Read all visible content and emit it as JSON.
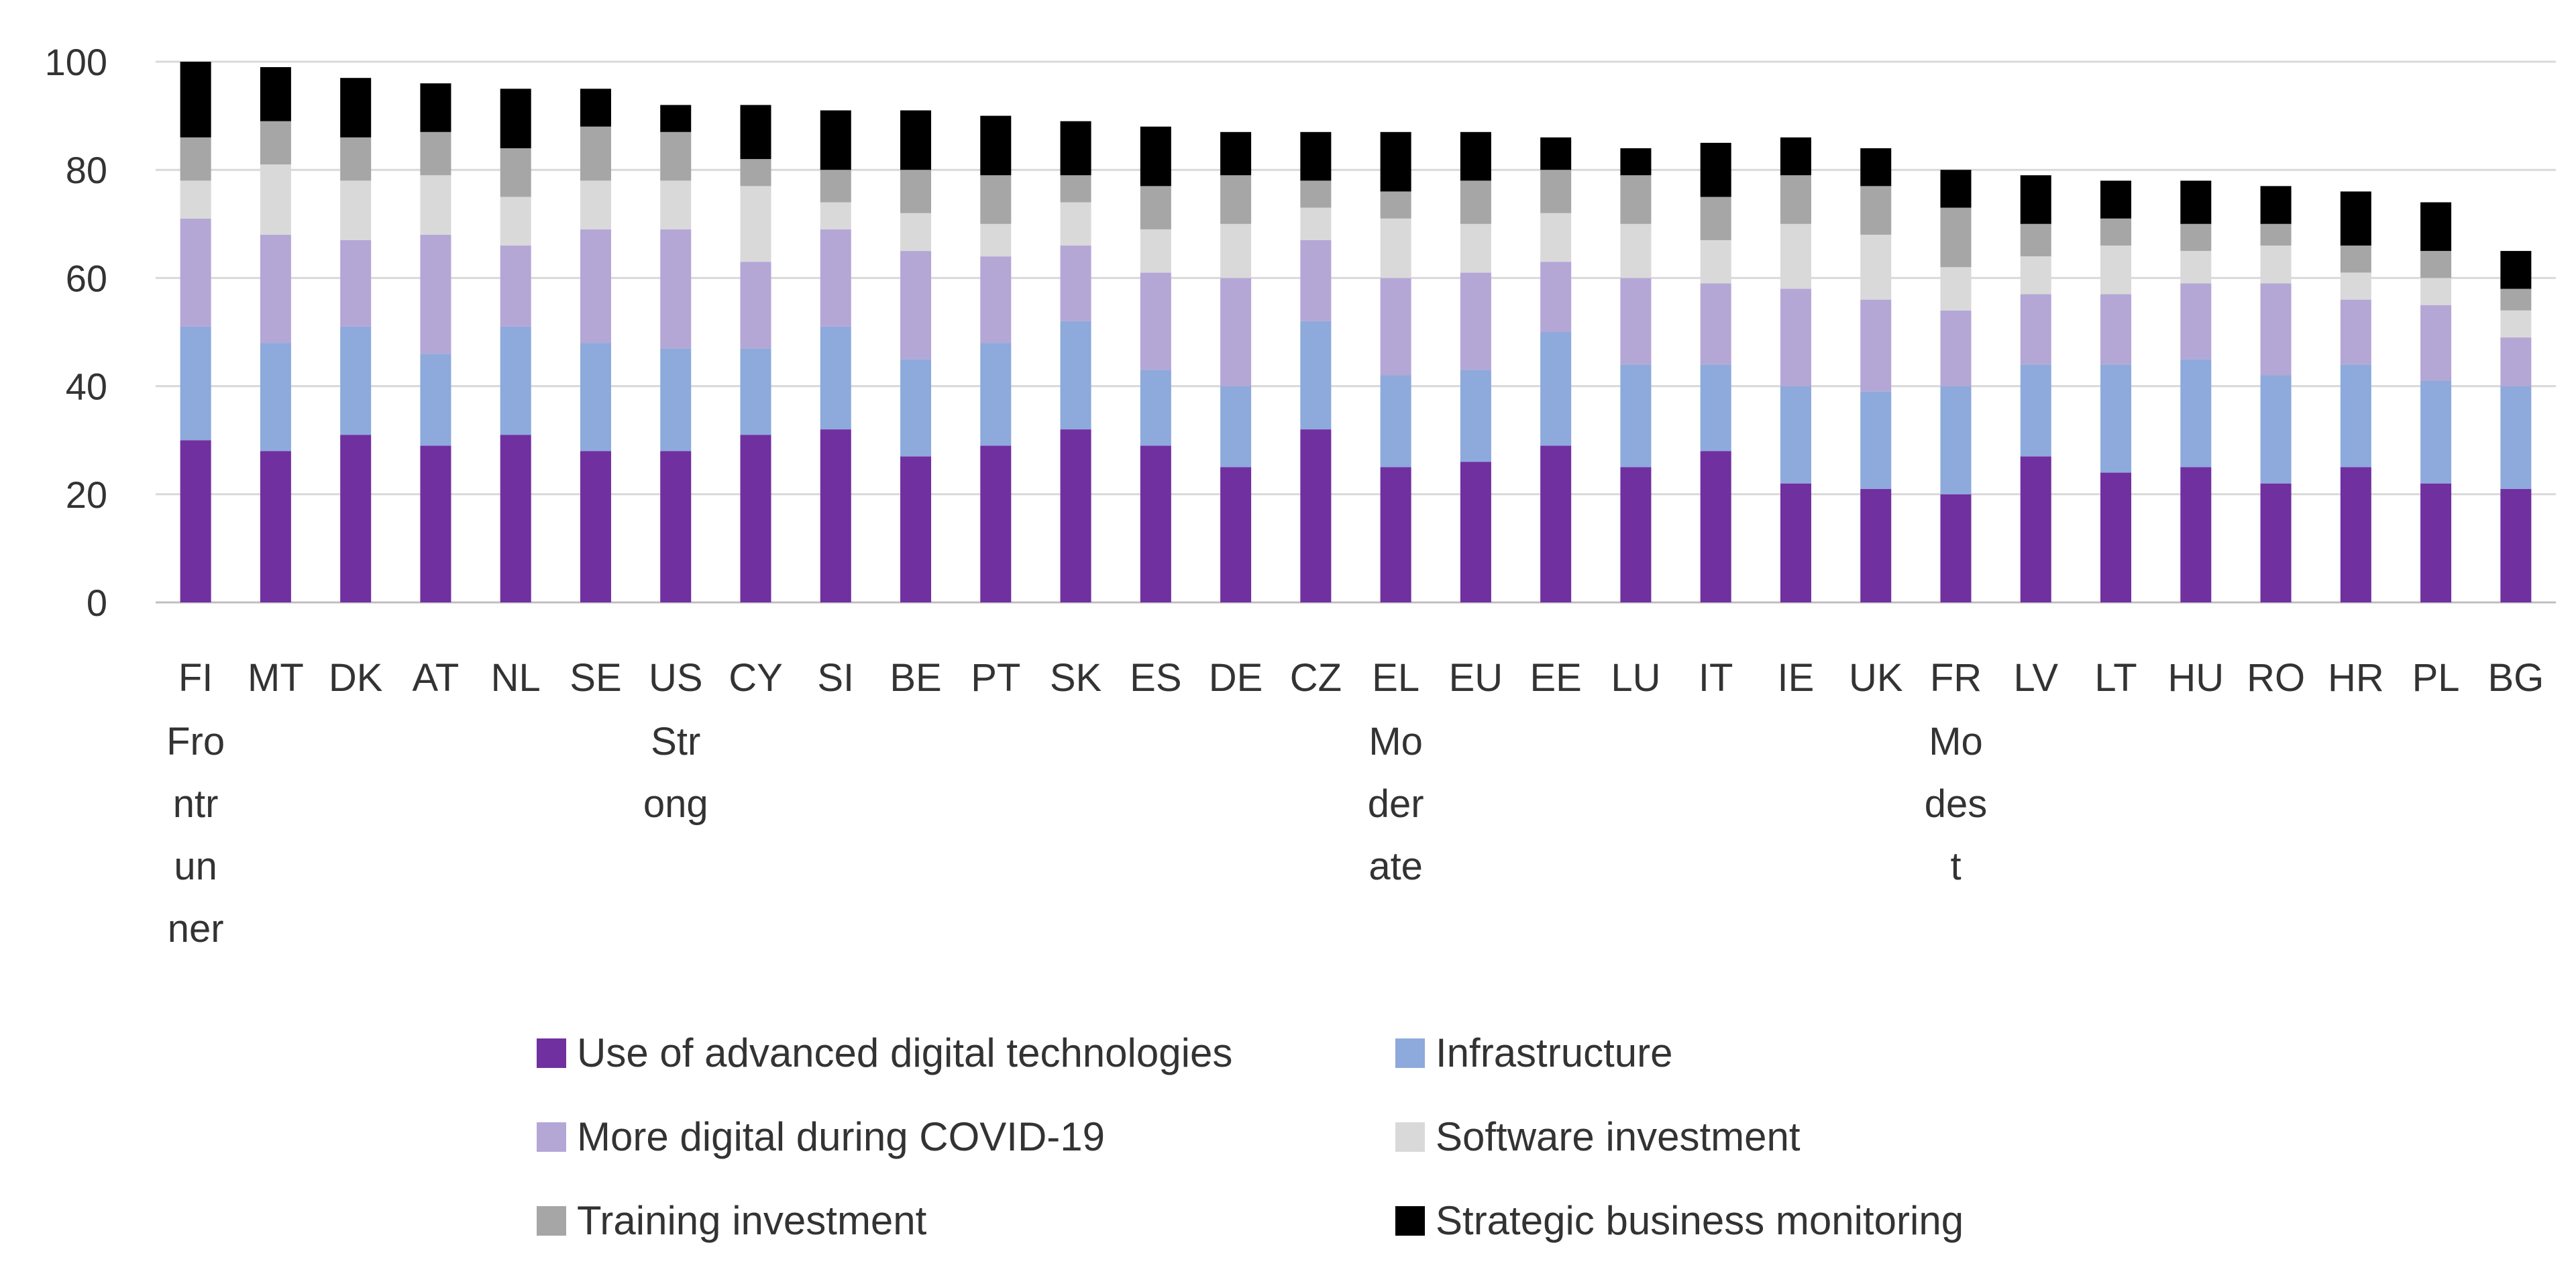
{
  "chart_data": {
    "type": "bar",
    "stacked": true,
    "title": "",
    "xlabel": "",
    "ylabel": "",
    "ylim": [
      0,
      100
    ],
    "yticks": [
      0,
      20,
      40,
      60,
      80,
      100
    ],
    "grid": true,
    "legend_position": "bottom",
    "categories": [
      "FI",
      "MT",
      "DK",
      "AT",
      "NL",
      "SE",
      "US",
      "CY",
      "SI",
      "BE",
      "PT",
      "SK",
      "ES",
      "DE",
      "CZ",
      "EL",
      "EU",
      "EE",
      "LU",
      "IT",
      "IE",
      "UK",
      "FR",
      "LV",
      "LT",
      "HU",
      "RO",
      "HR",
      "PL",
      "BG"
    ],
    "group_labels": [
      {
        "category": "FI",
        "lines": [
          "Fro",
          "ntr",
          "un",
          "ner"
        ]
      },
      {
        "category": "US",
        "lines": [
          "Str",
          "ong"
        ]
      },
      {
        "category": "EL",
        "lines": [
          "Mo",
          "der",
          "ate"
        ]
      },
      {
        "category": "FR",
        "lines": [
          "Mo",
          "des",
          "t"
        ]
      }
    ],
    "series": [
      {
        "name": "Use of advanced digital technologies",
        "color": "#7030A0",
        "values": [
          30,
          28,
          31,
          29,
          31,
          28,
          28,
          31,
          32,
          27,
          29,
          32,
          29,
          25,
          32,
          25,
          26,
          29,
          25,
          28,
          22,
          21,
          20,
          27,
          24,
          25,
          22,
          25,
          22,
          21
        ]
      },
      {
        "name": "Infrastructure",
        "color": "#8EA9DB",
        "values": [
          21,
          20,
          20,
          17,
          20,
          20,
          19,
          16,
          19,
          18,
          19,
          20,
          14,
          15,
          20,
          17,
          17,
          21,
          19,
          16,
          18,
          18,
          20,
          17,
          20,
          20,
          20,
          19,
          19,
          19
        ]
      },
      {
        "name": "More digital during COVID-19",
        "color": "#B4A7D6",
        "values": [
          20,
          20,
          16,
          22,
          15,
          21,
          22,
          16,
          18,
          20,
          16,
          14,
          18,
          20,
          15,
          18,
          18,
          13,
          16,
          15,
          18,
          17,
          14,
          13,
          13,
          14,
          17,
          12,
          14,
          9
        ]
      },
      {
        "name": "Software investment",
        "color": "#D9D9D9",
        "values": [
          7,
          13,
          11,
          11,
          9,
          9,
          9,
          14,
          5,
          7,
          6,
          8,
          8,
          10,
          6,
          11,
          9,
          9,
          10,
          8,
          12,
          12,
          8,
          7,
          9,
          6,
          7,
          5,
          5,
          5
        ]
      },
      {
        "name": "Training investment",
        "color": "#A6A6A6",
        "values": [
          8,
          8,
          8,
          8,
          9,
          10,
          9,
          5,
          6,
          8,
          9,
          5,
          8,
          9,
          5,
          5,
          8,
          8,
          9,
          8,
          9,
          9,
          11,
          6,
          5,
          5,
          4,
          5,
          5,
          4
        ]
      },
      {
        "name": "Strategic business monitoring",
        "color": "#000000",
        "values": [
          14,
          10,
          11,
          9,
          11,
          7,
          5,
          10,
          11,
          11,
          11,
          10,
          11,
          8,
          9,
          11,
          9,
          6,
          5,
          10,
          7,
          7,
          7,
          9,
          7,
          8,
          7,
          10,
          9,
          7
        ]
      }
    ]
  }
}
